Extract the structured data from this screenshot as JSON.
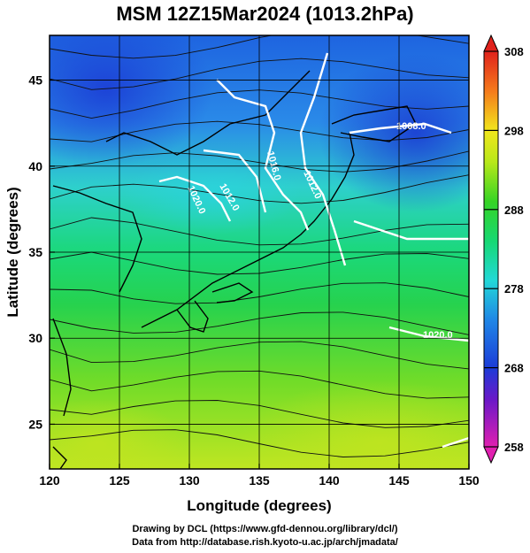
{
  "title": "MSM 12Z15Mar2024 (1013.2hPa)",
  "credits": [
    "Drawing by DCL (https://www.gfd-dennou.org/library/dcl/)",
    "Data from http://database.rish.kyoto-u.ac.jp/arch/jmadata/"
  ],
  "chart_data": {
    "type": "heatmap",
    "title": "MSM 12Z15Mar2024 (1013.2hPa)",
    "xlabel": "Longitude (degrees)",
    "ylabel": "Latitude  (degrees)",
    "xlim": [
      120,
      150
    ],
    "ylim": [
      22.4,
      47.6
    ],
    "x_ticks": [
      "120",
      "125",
      "130",
      "135",
      "140",
      "145",
      "150"
    ],
    "y_ticks": [
      "25",
      "30",
      "35",
      "40",
      "45"
    ],
    "grid": true,
    "colorbar": {
      "vmin": 258,
      "vmax": 308,
      "ticks": [
        "258",
        "268",
        "278",
        "288",
        "298",
        "308"
      ]
    },
    "contour_labels": [
      "1008.0",
      "1016.0",
      "1012.0",
      "1020.0",
      "1020.0",
      "1012.0"
    ],
    "overlays": [
      "temperature shading",
      "isobars",
      "streamlines",
      "coastlines"
    ]
  }
}
